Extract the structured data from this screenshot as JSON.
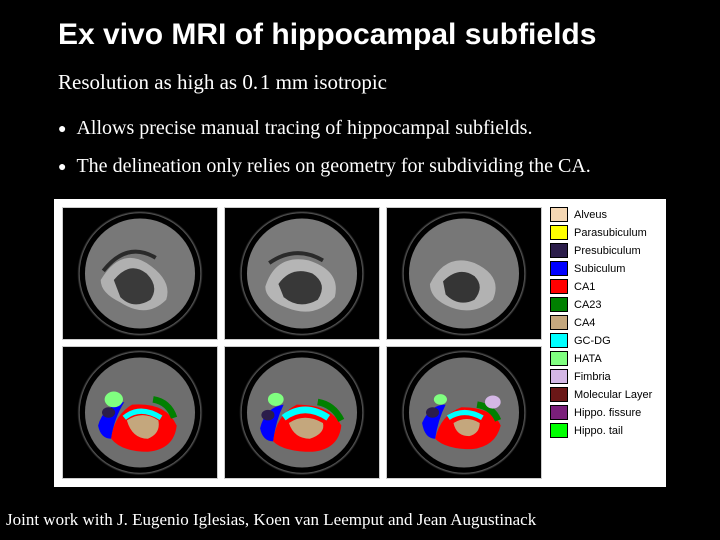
{
  "title": "Ex vivo MRI of hippocampal subfields",
  "subtitle": "Resolution as high as 0. 1 mm isotropic",
  "bullets": [
    "Allows precise manual tracing of hippocampal subfields.",
    "The delineation only relies on geometry for subdividing the CA."
  ],
  "credit": "Joint work with J. Eugenio Iglesias, Koen van Leemput and Jean Augustinack",
  "figure": {
    "background_color": "#ffffff",
    "legend": [
      {
        "label": "Alveus",
        "color": "#f5d7b3"
      },
      {
        "label": "Parasubiculum",
        "color": "#ffff00"
      },
      {
        "label": "Presubiculum",
        "color": "#2b1d4a"
      },
      {
        "label": "Subiculum",
        "color": "#0000ff"
      },
      {
        "label": "CA1",
        "color": "#ff0000"
      },
      {
        "label": "CA23",
        "color": "#008000"
      },
      {
        "label": "CA4",
        "color": "#c4a77d"
      },
      {
        "label": "GC-DG",
        "color": "#00ffff"
      },
      {
        "label": "HATA",
        "color": "#80ff80"
      },
      {
        "label": "Fimbria",
        "color": "#d4b7e6"
      },
      {
        "label": "Molecular Layer",
        "color": "#6b1717"
      },
      {
        "label": "Hippo. fissure",
        "color": "#7a1f7a"
      },
      {
        "label": "Hippo. tail",
        "color": "#00ff00"
      }
    ],
    "scans": {
      "rows": 2,
      "cols": 3,
      "top_row_annotated": false,
      "bottom_row_annotated": true
    }
  }
}
